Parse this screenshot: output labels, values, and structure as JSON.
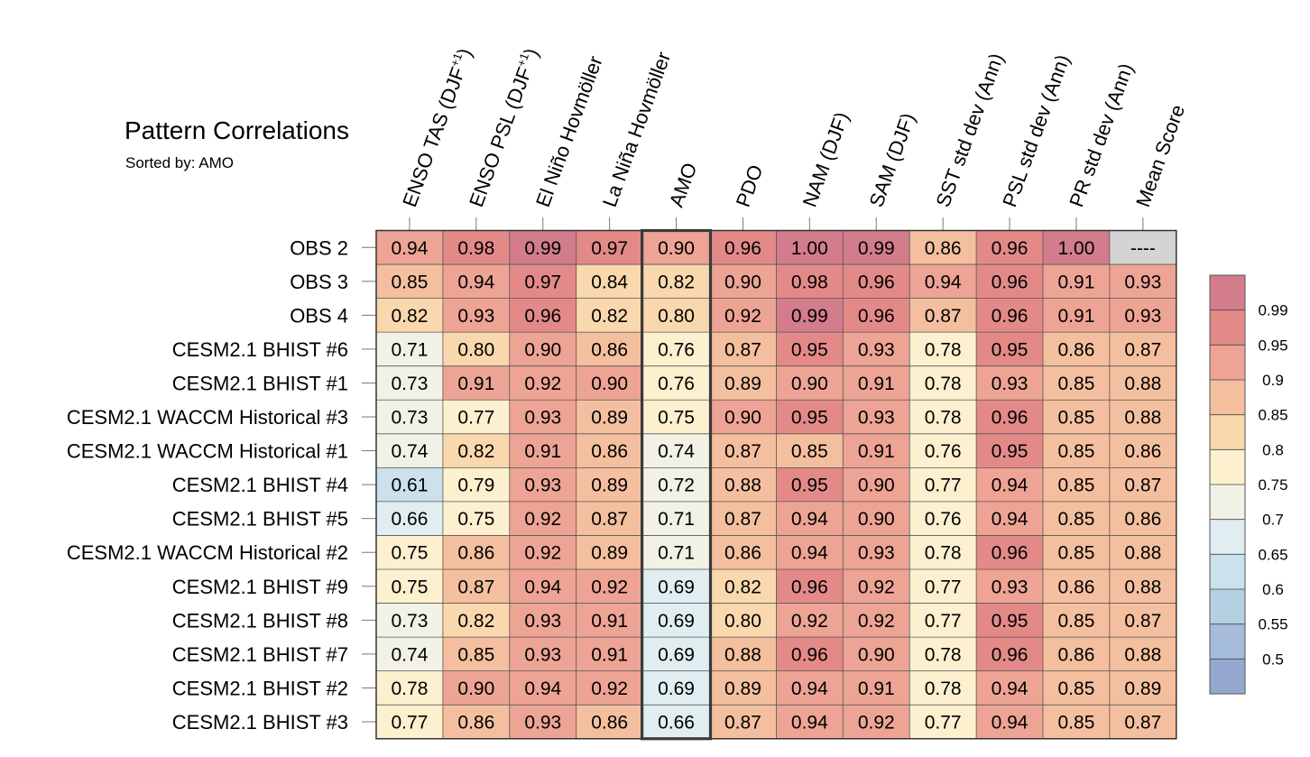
{
  "chart_data": {
    "type": "heatmap",
    "title": "Pattern Correlations",
    "subtitle": "Sorted by: AMO",
    "columns": [
      {
        "text": "ENSO TAS (DJF",
        "sup": "+1",
        "after": ")"
      },
      {
        "text": "ENSO PSL (DJF",
        "sup": "+1",
        "after": ")"
      },
      {
        "text": "El Niño Hovmöller"
      },
      {
        "text": "La Niña Hovmöller"
      },
      {
        "text": "AMO"
      },
      {
        "text": "PDO"
      },
      {
        "text": "NAM (DJF)"
      },
      {
        "text": "SAM (DJF)"
      },
      {
        "text": "SST std dev (Ann)"
      },
      {
        "text": "PSL std dev (Ann)"
      },
      {
        "text": "PR std dev (Ann)"
      },
      {
        "text": "Mean Score"
      }
    ],
    "rows": [
      {
        "label": "OBS 2",
        "values": [
          0.94,
          0.98,
          0.99,
          0.97,
          0.9,
          0.96,
          1.0,
          0.99,
          0.86,
          0.96,
          1.0,
          null
        ]
      },
      {
        "label": "OBS 3",
        "values": [
          0.85,
          0.94,
          0.97,
          0.84,
          0.82,
          0.9,
          0.98,
          0.96,
          0.94,
          0.96,
          0.91,
          0.93
        ]
      },
      {
        "label": "OBS 4",
        "values": [
          0.82,
          0.93,
          0.96,
          0.82,
          0.8,
          0.92,
          0.99,
          0.96,
          0.87,
          0.96,
          0.91,
          0.93
        ]
      },
      {
        "label": "CESM2.1 BHIST #6",
        "values": [
          0.71,
          0.8,
          0.9,
          0.86,
          0.76,
          0.87,
          0.95,
          0.93,
          0.78,
          0.95,
          0.86,
          0.87
        ]
      },
      {
        "label": "CESM2.1 BHIST #1",
        "values": [
          0.73,
          0.91,
          0.92,
          0.9,
          0.76,
          0.89,
          0.9,
          0.91,
          0.78,
          0.93,
          0.85,
          0.88
        ]
      },
      {
        "label": "CESM2.1 WACCM Historical #3",
        "values": [
          0.73,
          0.77,
          0.93,
          0.89,
          0.75,
          0.9,
          0.95,
          0.93,
          0.78,
          0.96,
          0.85,
          0.88
        ]
      },
      {
        "label": "CESM2.1 WACCM Historical #1",
        "values": [
          0.74,
          0.82,
          0.91,
          0.86,
          0.74,
          0.87,
          0.85,
          0.91,
          0.76,
          0.95,
          0.85,
          0.86
        ]
      },
      {
        "label": "CESM2.1 BHIST #4",
        "values": [
          0.61,
          0.79,
          0.93,
          0.89,
          0.72,
          0.88,
          0.95,
          0.9,
          0.77,
          0.94,
          0.85,
          0.87
        ]
      },
      {
        "label": "CESM2.1 BHIST #5",
        "values": [
          0.66,
          0.75,
          0.92,
          0.87,
          0.71,
          0.87,
          0.94,
          0.9,
          0.76,
          0.94,
          0.85,
          0.86
        ]
      },
      {
        "label": "CESM2.1 WACCM Historical #2",
        "values": [
          0.75,
          0.86,
          0.92,
          0.89,
          0.71,
          0.86,
          0.94,
          0.93,
          0.78,
          0.96,
          0.85,
          0.88
        ]
      },
      {
        "label": "CESM2.1 BHIST #9",
        "values": [
          0.75,
          0.87,
          0.94,
          0.92,
          0.69,
          0.82,
          0.96,
          0.92,
          0.77,
          0.93,
          0.86,
          0.88
        ]
      },
      {
        "label": "CESM2.1 BHIST #8",
        "values": [
          0.73,
          0.82,
          0.93,
          0.91,
          0.69,
          0.8,
          0.92,
          0.92,
          0.77,
          0.95,
          0.85,
          0.87
        ]
      },
      {
        "label": "CESM2.1 BHIST #7",
        "values": [
          0.74,
          0.85,
          0.93,
          0.91,
          0.69,
          0.88,
          0.96,
          0.9,
          0.78,
          0.96,
          0.86,
          0.88
        ]
      },
      {
        "label": "CESM2.1 BHIST #2",
        "values": [
          0.78,
          0.9,
          0.94,
          0.92,
          0.69,
          0.89,
          0.94,
          0.91,
          0.78,
          0.94,
          0.85,
          0.89
        ]
      },
      {
        "label": "CESM2.1 BHIST #3",
        "values": [
          0.77,
          0.86,
          0.93,
          0.86,
          0.66,
          0.87,
          0.94,
          0.92,
          0.77,
          0.94,
          0.85,
          0.87
        ]
      }
    ],
    "missing_text": "----",
    "missing_color": "#d4d4d4",
    "highlight_column": "AMO",
    "colorbar": {
      "ticks": [
        "0.99",
        "0.95",
        "0.9",
        "0.85",
        "0.8",
        "0.75",
        "0.7",
        "0.65",
        "0.6",
        "0.55",
        "0.5"
      ],
      "levels": [
        0.99,
        0.95,
        0.9,
        0.85,
        0.8,
        0.75,
        0.7,
        0.65,
        0.6,
        0.55,
        0.5
      ],
      "colors": [
        "#d27c8c",
        "#e38a89",
        "#eda495",
        "#f4bf9f",
        "#f9d8ae",
        "#fcf0cf",
        "#f2f1e5",
        "#e0eef2",
        "#cbe1ec",
        "#b5d0e3",
        "#a5bcda",
        "#95a8d0"
      ]
    }
  }
}
